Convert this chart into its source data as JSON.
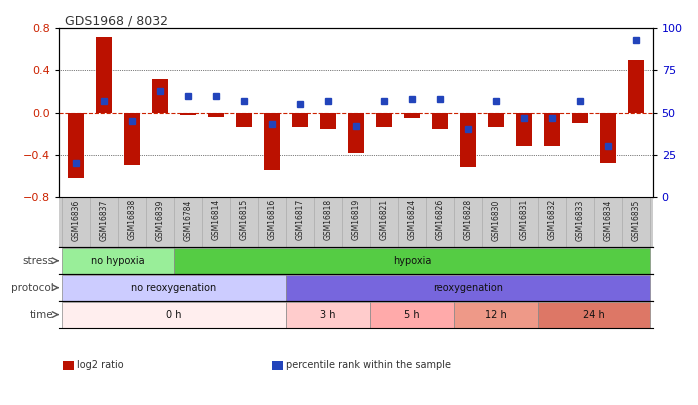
{
  "title": "GDS1968 / 8032",
  "samples": [
    "GSM16836",
    "GSM16837",
    "GSM16838",
    "GSM16839",
    "GSM16784",
    "GSM16814",
    "GSM16815",
    "GSM16816",
    "GSM16817",
    "GSM16818",
    "GSM16819",
    "GSM16821",
    "GSM16824",
    "GSM16826",
    "GSM16828",
    "GSM16830",
    "GSM16831",
    "GSM16832",
    "GSM16833",
    "GSM16834",
    "GSM16835"
  ],
  "log2_ratio": [
    -0.62,
    0.72,
    -0.5,
    0.32,
    -0.02,
    -0.04,
    -0.14,
    -0.55,
    -0.14,
    -0.16,
    -0.38,
    -0.14,
    -0.05,
    -0.16,
    -0.52,
    -0.14,
    -0.32,
    -0.32,
    -0.1,
    -0.48,
    0.5
  ],
  "percentile_rank": [
    20,
    57,
    45,
    63,
    60,
    60,
    57,
    43,
    55,
    57,
    42,
    57,
    58,
    58,
    40,
    57,
    47,
    47,
    57,
    30,
    93
  ],
  "ylim_left": [
    -0.8,
    0.8
  ],
  "ylim_right": [
    0,
    100
  ],
  "yticks_left": [
    -0.8,
    -0.4,
    0.0,
    0.4,
    0.8
  ],
  "yticks_right": [
    0,
    25,
    50,
    75,
    100
  ],
  "bar_color": "#bb1100",
  "dot_color": "#2244bb",
  "zero_line_color": "#cc2200",
  "grid_color": "#000000",
  "stress_groups": [
    {
      "label": "no hypoxia",
      "start": 0,
      "end": 4,
      "color": "#99ee99"
    },
    {
      "label": "hypoxia",
      "start": 4,
      "end": 21,
      "color": "#55cc44"
    }
  ],
  "protocol_groups": [
    {
      "label": "no reoxygenation",
      "start": 0,
      "end": 8,
      "color": "#ccccff"
    },
    {
      "label": "reoxygenation",
      "start": 8,
      "end": 21,
      "color": "#7766dd"
    }
  ],
  "time_groups": [
    {
      "label": "0 h",
      "start": 0,
      "end": 8,
      "color": "#ffeeee"
    },
    {
      "label": "3 h",
      "start": 8,
      "end": 11,
      "color": "#ffcccc"
    },
    {
      "label": "5 h",
      "start": 11,
      "end": 14,
      "color": "#ffaaaa"
    },
    {
      "label": "12 h",
      "start": 14,
      "end": 17,
      "color": "#ee9988"
    },
    {
      "label": "24 h",
      "start": 17,
      "end": 21,
      "color": "#dd7766"
    }
  ],
  "legend_items": [
    {
      "label": "log2 ratio",
      "color": "#bb1100"
    },
    {
      "label": "percentile rank within the sample",
      "color": "#2244bb"
    }
  ],
  "background_color": "#ffffff",
  "tick_label_color_left": "#cc2200",
  "tick_label_color_right": "#0000cc",
  "xticklabel_bg": "#cccccc"
}
